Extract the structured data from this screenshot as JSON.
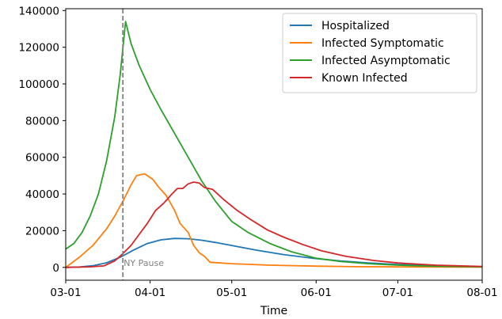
{
  "chart_data": {
    "type": "line",
    "title": "",
    "xlabel": "Time",
    "ylabel": "",
    "xlim": [
      "2020-03-01",
      "2020-08-01"
    ],
    "ylim": [
      -7000,
      141000
    ],
    "grid": false,
    "legend": "top-right",
    "x_ticks": [
      {
        "value": "2020-03-01",
        "label": "03-01"
      },
      {
        "value": "2020-04-01",
        "label": "04-01"
      },
      {
        "value": "2020-05-01",
        "label": "05-01"
      },
      {
        "value": "2020-06-01",
        "label": "06-01"
      },
      {
        "value": "2020-07-01",
        "label": "07-01"
      },
      {
        "value": "2020-08-01",
        "label": "08-01"
      }
    ],
    "y_ticks": [
      {
        "value": 0,
        "label": "0"
      },
      {
        "value": 20000,
        "label": "20000"
      },
      {
        "value": 40000,
        "label": "40000"
      },
      {
        "value": 60000,
        "label": "60000"
      },
      {
        "value": 80000,
        "label": "80000"
      },
      {
        "value": 100000,
        "label": "100000"
      },
      {
        "value": 120000,
        "label": "120000"
      },
      {
        "value": 140000,
        "label": "140000"
      }
    ],
    "annotation": {
      "label": "NY Pause",
      "x": "2020-03-22",
      "color": "#808080"
    },
    "series": [
      {
        "name": "Hospitalized",
        "color": "#1f77b4",
        "points": [
          [
            "2020-03-01",
            0
          ],
          [
            "2020-03-06",
            200
          ],
          [
            "2020-03-11",
            900
          ],
          [
            "2020-03-16",
            2500
          ],
          [
            "2020-03-21",
            5500
          ],
          [
            "2020-03-26",
            9500
          ],
          [
            "2020-03-31",
            13000
          ],
          [
            "2020-04-05",
            15000
          ],
          [
            "2020-04-10",
            15800
          ],
          [
            "2020-04-15",
            15600
          ],
          [
            "2020-04-20",
            14800
          ],
          [
            "2020-04-25",
            13600
          ],
          [
            "2020-04-30",
            12200
          ],
          [
            "2020-05-05",
            10800
          ],
          [
            "2020-05-10",
            9400
          ],
          [
            "2020-05-20",
            7000
          ],
          [
            "2020-05-31",
            4900
          ],
          [
            "2020-06-10",
            3500
          ],
          [
            "2020-06-20",
            2400
          ],
          [
            "2020-07-01",
            1600
          ],
          [
            "2020-07-15",
            900
          ],
          [
            "2020-08-01",
            400
          ]
        ]
      },
      {
        "name": "Infected Symptomatic",
        "color": "#ff7f0e",
        "points": [
          [
            "2020-03-01",
            0
          ],
          [
            "2020-03-06",
            5500
          ],
          [
            "2020-03-11",
            12000
          ],
          [
            "2020-03-16",
            21000
          ],
          [
            "2020-03-19",
            28000
          ],
          [
            "2020-03-22",
            36000
          ],
          [
            "2020-03-25",
            45000
          ],
          [
            "2020-03-27",
            50000
          ],
          [
            "2020-03-30",
            51000
          ],
          [
            "2020-04-02",
            48000
          ],
          [
            "2020-04-04",
            44000
          ],
          [
            "2020-04-07",
            39000
          ],
          [
            "2020-04-10",
            31000
          ],
          [
            "2020-04-12",
            24000
          ],
          [
            "2020-04-15",
            19000
          ],
          [
            "2020-04-17",
            12000
          ],
          [
            "2020-04-19",
            8000
          ],
          [
            "2020-04-21",
            6000
          ],
          [
            "2020-04-23",
            2800
          ],
          [
            "2020-05-01",
            2000
          ],
          [
            "2020-05-15",
            1200
          ],
          [
            "2020-06-01",
            700
          ],
          [
            "2020-06-15",
            400
          ],
          [
            "2020-07-01",
            250
          ],
          [
            "2020-08-01",
            100
          ]
        ]
      },
      {
        "name": "Infected Asymptomatic",
        "color": "#2ca02c",
        "points": [
          [
            "2020-03-01",
            10000
          ],
          [
            "2020-03-04",
            13000
          ],
          [
            "2020-03-07",
            19000
          ],
          [
            "2020-03-10",
            28000
          ],
          [
            "2020-03-13",
            40000
          ],
          [
            "2020-03-16",
            58000
          ],
          [
            "2020-03-19",
            82000
          ],
          [
            "2020-03-21",
            105000
          ],
          [
            "2020-03-23",
            134000
          ],
          [
            "2020-03-25",
            122000
          ],
          [
            "2020-03-28",
            110000
          ],
          [
            "2020-04-01",
            97000
          ],
          [
            "2020-04-05",
            86000
          ],
          [
            "2020-04-10",
            73000
          ],
          [
            "2020-04-15",
            60000
          ],
          [
            "2020-04-20",
            47000
          ],
          [
            "2020-04-25",
            36000
          ],
          [
            "2020-05-01",
            25000
          ],
          [
            "2020-05-07",
            19000
          ],
          [
            "2020-05-15",
            13000
          ],
          [
            "2020-05-23",
            8500
          ],
          [
            "2020-06-01",
            5000
          ],
          [
            "2020-06-10",
            3200
          ],
          [
            "2020-06-20",
            2000
          ],
          [
            "2020-07-01",
            1200
          ],
          [
            "2020-07-15",
            600
          ],
          [
            "2020-08-01",
            300
          ]
        ]
      },
      {
        "name": "Known Infected",
        "color": "#d62728",
        "points": [
          [
            "2020-03-01",
            0
          ],
          [
            "2020-03-10",
            300
          ],
          [
            "2020-03-15",
            800
          ],
          [
            "2020-03-19",
            3500
          ],
          [
            "2020-03-22",
            7500
          ],
          [
            "2020-03-25",
            12000
          ],
          [
            "2020-03-28",
            18000
          ],
          [
            "2020-03-31",
            24000
          ],
          [
            "2020-04-03",
            31000
          ],
          [
            "2020-04-06",
            35000
          ],
          [
            "2020-04-09",
            40000
          ],
          [
            "2020-04-11",
            43000
          ],
          [
            "2020-04-13",
            43000
          ],
          [
            "2020-04-15",
            45500
          ],
          [
            "2020-04-17",
            46500
          ],
          [
            "2020-04-19",
            46000
          ],
          [
            "2020-04-21",
            43500
          ],
          [
            "2020-04-24",
            42500
          ],
          [
            "2020-04-28",
            37000
          ],
          [
            "2020-05-03",
            31000
          ],
          [
            "2020-05-08",
            26000
          ],
          [
            "2020-05-14",
            20500
          ],
          [
            "2020-05-20",
            16500
          ],
          [
            "2020-05-27",
            12500
          ],
          [
            "2020-06-03",
            9000
          ],
          [
            "2020-06-12",
            6000
          ],
          [
            "2020-06-22",
            3800
          ],
          [
            "2020-07-01",
            2400
          ],
          [
            "2020-07-15",
            1200
          ],
          [
            "2020-08-01",
            500
          ]
        ]
      }
    ]
  }
}
